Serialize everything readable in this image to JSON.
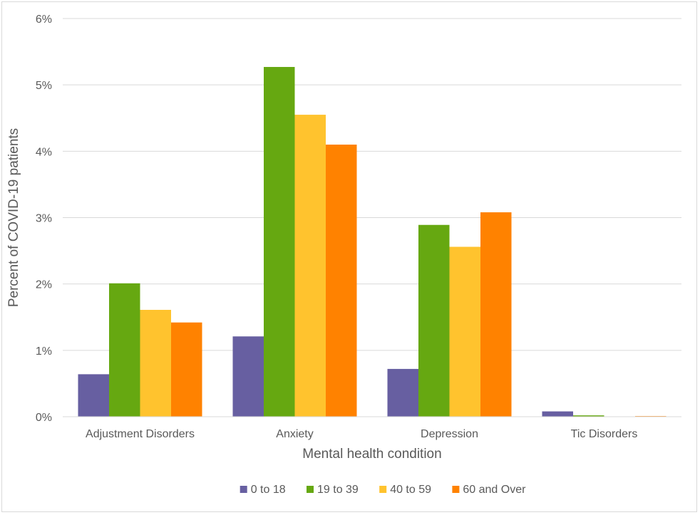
{
  "chart_data": {
    "type": "bar",
    "title": "",
    "xlabel": "Mental health condition",
    "ylabel": "Percent of COVID-19 patients",
    "categories": [
      "Adjustment Disorders",
      "Anxiety",
      "Depression",
      "Tic Disorders"
    ],
    "series": [
      {
        "name": "0 to 18",
        "color": "#675fa1",
        "values": [
          0.64,
          1.21,
          0.72,
          0.08
        ]
      },
      {
        "name": "19 to 39",
        "color": "#66a811",
        "values": [
          2.01,
          5.27,
          2.89,
          0.02
        ]
      },
      {
        "name": "40 to 59",
        "color": "#ffc32e",
        "values": [
          1.61,
          4.55,
          2.56,
          0.005
        ]
      },
      {
        "name": "60 and Over",
        "color": "#ff8200",
        "values": [
          1.42,
          4.1,
          3.08,
          0.01
        ]
      }
    ],
    "ylim": [
      0,
      6
    ],
    "yticks": [
      0,
      1,
      2,
      3,
      4,
      5,
      6
    ],
    "ytick_labels": [
      "0%",
      "1%",
      "2%",
      "3%",
      "4%",
      "5%",
      "6%"
    ],
    "grid": true,
    "legend_position": "bottom"
  }
}
